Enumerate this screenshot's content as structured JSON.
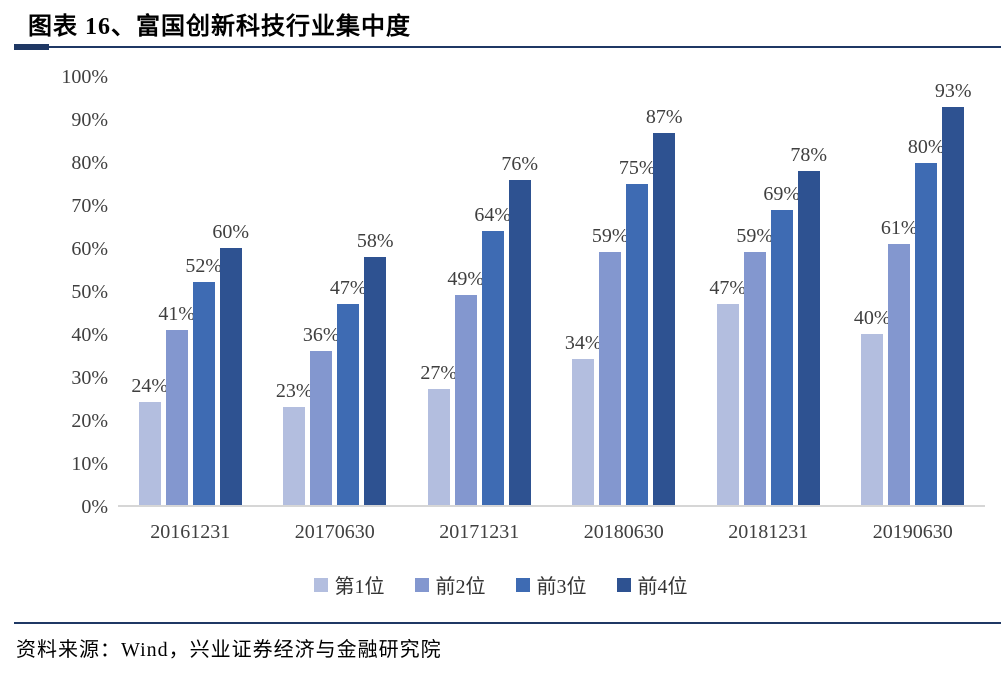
{
  "header": {
    "title": "图表 16、富国创新科技行业集中度"
  },
  "footer": {
    "source": "资料来源：Wind，兴业证券经济与金融研究院"
  },
  "colors": {
    "rule_navy": "#1F3864",
    "baseline_gray": "#D6D6D6",
    "label_gray": "#3F3F3F"
  },
  "chart_data": {
    "type": "bar",
    "title": "富国创新科技行业集中度",
    "categories": [
      "20161231",
      "20170630",
      "20171231",
      "20180630",
      "20181231",
      "20190630"
    ],
    "series": [
      {
        "name": "第1位",
        "color": "#B3BEDF",
        "values": [
          24,
          23,
          27,
          34,
          47,
          40
        ]
      },
      {
        "name": "前2位",
        "color": "#8397CF",
        "values": [
          41,
          36,
          49,
          59,
          59,
          61
        ]
      },
      {
        "name": "前3位",
        "color": "#3E6BB3",
        "values": [
          52,
          47,
          64,
          75,
          69,
          80
        ]
      },
      {
        "name": "前4位",
        "color": "#2E5291",
        "values": [
          60,
          58,
          76,
          87,
          78,
          93
        ]
      }
    ],
    "value_suffix": "%",
    "data_labels": true,
    "xlabel": "",
    "ylabel": "",
    "ylim": [
      0,
      100
    ],
    "y_ticks": [
      "0%",
      "10%",
      "20%",
      "30%",
      "40%",
      "50%",
      "60%",
      "70%",
      "80%",
      "90%",
      "100%"
    ],
    "grid": false,
    "legend_position": "bottom"
  }
}
